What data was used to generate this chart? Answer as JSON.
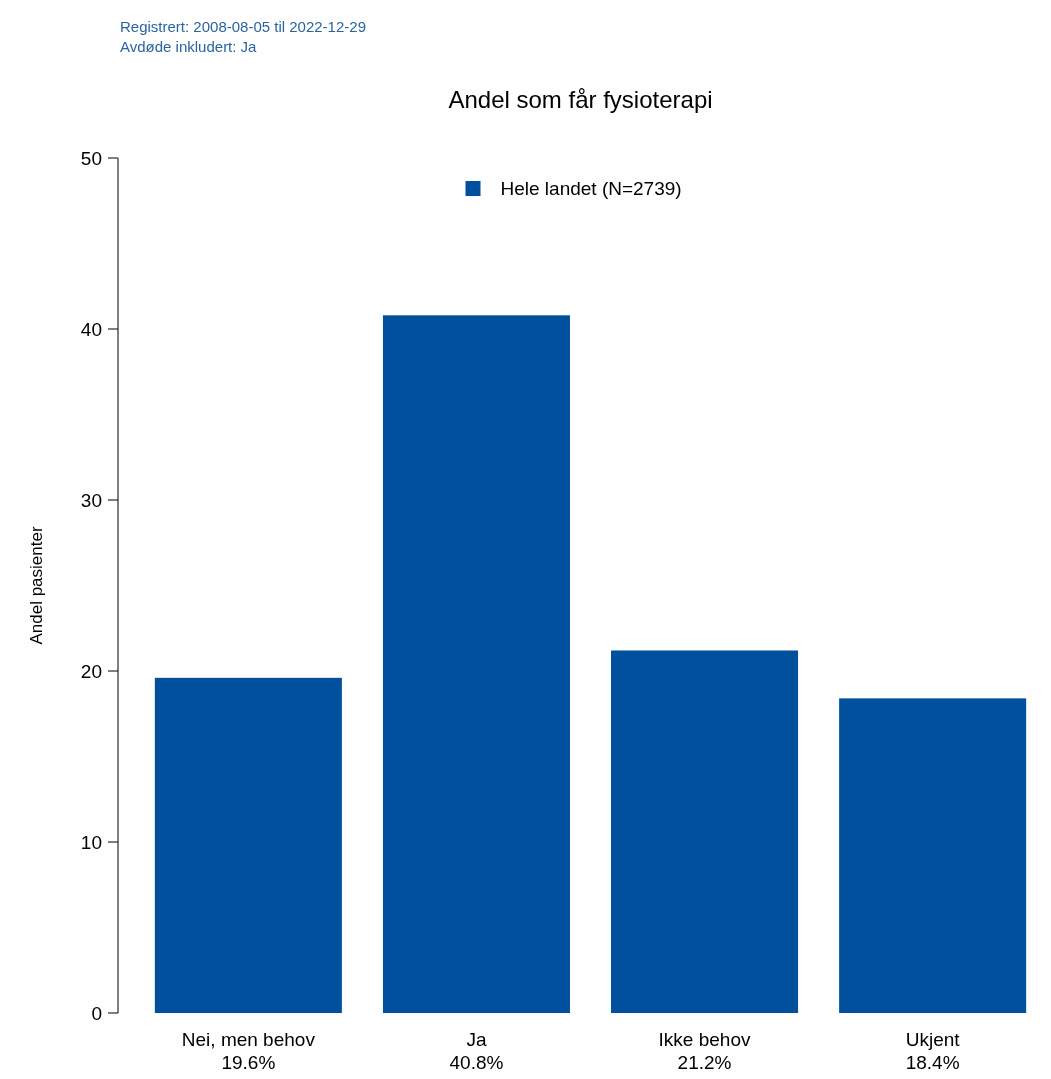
{
  "chart_data": {
    "type": "bar",
    "title": "Andel som får fysioterapi",
    "ylabel": "Andel pasienter",
    "annotations": [
      "Registrert: 2008-08-05 til 2022-12-29",
      "Avdøde inkludert: Ja"
    ],
    "categories": [
      "Nei, men behov",
      "Ja",
      "Ikke behov",
      "Ukjent"
    ],
    "series": [
      {
        "name": "Hele landet (N=2739)",
        "color": "#00509e",
        "values": [
          19.6,
          40.8,
          21.2,
          18.4
        ],
        "value_labels": [
          "19.6%",
          "40.8%",
          "21.2%",
          "18.4%"
        ]
      }
    ],
    "ylim": [
      0,
      50
    ],
    "yticks": [
      0,
      10,
      20,
      30,
      40,
      50
    ],
    "grid": false,
    "legend": "top"
  }
}
